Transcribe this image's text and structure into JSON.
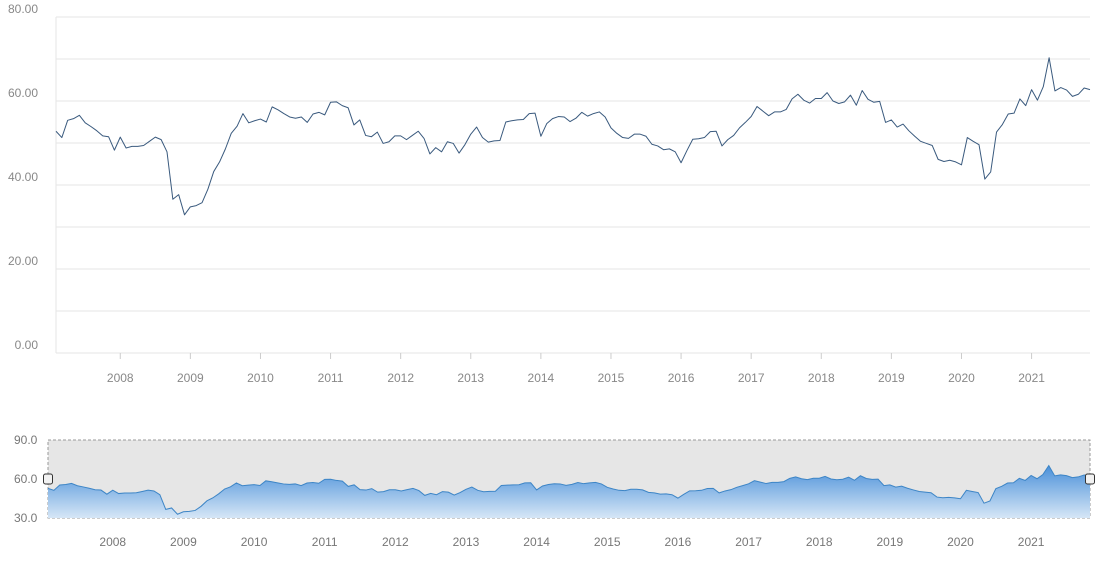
{
  "colors": {
    "line": "#3a5a7e",
    "grid": "#e6e6e6",
    "axis_text": "#888888",
    "navigator_mask": "#e6e6e6",
    "navigator_fill_top": "#4a90d9",
    "navigator_fill_bottom": "#d6e6f6",
    "navigator_line": "#3d85c6"
  },
  "icons": {
    "navigator_left_handle": "range-handle-left-icon",
    "navigator_right_handle": "range-handle-right-icon"
  },
  "chart_data": [
    {
      "type": "line",
      "role": "main",
      "title": "",
      "xlabel": "",
      "ylabel": "",
      "grid": true,
      "legend": "none",
      "xlim": [
        "2007-02",
        "2021-11"
      ],
      "ylim": [
        0,
        80
      ],
      "y_ticks": [
        "0.00",
        "20.00",
        "40.00",
        "60.00",
        "80.00"
      ],
      "x_ticks": [
        "2008",
        "2009",
        "2010",
        "2011",
        "2012",
        "2013",
        "2014",
        "2015",
        "2016",
        "2017",
        "2018",
        "2019",
        "2020",
        "2021"
      ],
      "series": [
        {
          "x": [
            "2007-02",
            "2007-03",
            "2007-04",
            "2007-05",
            "2007-06",
            "2007-07",
            "2007-08",
            "2007-09",
            "2007-10",
            "2007-11",
            "2007-12",
            "2008-01",
            "2008-02",
            "2008-03",
            "2008-04",
            "2008-05",
            "2008-06",
            "2008-07",
            "2008-08",
            "2008-09",
            "2008-10",
            "2008-11",
            "2008-12",
            "2009-01",
            "2009-02",
            "2009-03",
            "2009-04",
            "2009-05",
            "2009-06",
            "2009-07",
            "2009-08",
            "2009-09",
            "2009-10",
            "2009-11",
            "2009-12",
            "2010-01",
            "2010-02",
            "2010-03",
            "2010-04",
            "2010-05",
            "2010-06",
            "2010-07",
            "2010-08",
            "2010-09",
            "2010-10",
            "2010-11",
            "2010-12",
            "2011-01",
            "2011-02",
            "2011-03",
            "2011-04",
            "2011-05",
            "2011-06",
            "2011-07",
            "2011-08",
            "2011-09",
            "2011-10",
            "2011-11",
            "2011-12",
            "2012-01",
            "2012-02",
            "2012-03",
            "2012-04",
            "2012-05",
            "2012-06",
            "2012-07",
            "2012-08",
            "2012-09",
            "2012-10",
            "2012-11",
            "2012-12",
            "2013-01",
            "2013-02",
            "2013-03",
            "2013-04",
            "2013-05",
            "2013-06",
            "2013-07",
            "2013-08",
            "2013-09",
            "2013-10",
            "2013-11",
            "2013-12",
            "2014-01",
            "2014-02",
            "2014-03",
            "2014-04",
            "2014-05",
            "2014-06",
            "2014-07",
            "2014-08",
            "2014-09",
            "2014-10",
            "2014-11",
            "2014-12",
            "2015-01",
            "2015-02",
            "2015-03",
            "2015-04",
            "2015-05",
            "2015-06",
            "2015-07",
            "2015-08",
            "2015-09",
            "2015-10",
            "2015-11",
            "2015-12",
            "2016-01",
            "2016-02",
            "2016-03",
            "2016-04",
            "2016-05",
            "2016-06",
            "2016-07",
            "2016-08",
            "2016-09",
            "2016-10",
            "2016-11",
            "2016-12",
            "2017-01",
            "2017-02",
            "2017-03",
            "2017-04",
            "2017-05",
            "2017-06",
            "2017-07",
            "2017-08",
            "2017-09",
            "2017-10",
            "2017-11",
            "2017-12",
            "2018-01",
            "2018-02",
            "2018-03",
            "2018-04",
            "2018-05",
            "2018-06",
            "2018-07",
            "2018-08",
            "2018-09",
            "2018-10",
            "2018-11",
            "2018-12",
            "2019-01",
            "2019-02",
            "2019-03",
            "2019-04",
            "2019-05",
            "2019-06",
            "2019-07",
            "2019-08",
            "2019-09",
            "2019-10",
            "2019-11",
            "2019-12",
            "2020-01",
            "2020-02",
            "2020-03",
            "2020-04",
            "2020-05",
            "2020-06",
            "2020-07",
            "2020-08",
            "2020-09",
            "2020-10",
            "2020-11",
            "2020-12",
            "2021-01",
            "2021-02",
            "2021-03",
            "2021-04",
            "2021-05",
            "2021-06",
            "2021-07",
            "2021-08",
            "2021-09",
            "2021-10",
            "2021-11"
          ],
          "values": [
            52.8,
            51.3,
            55.4,
            55.8,
            56.6,
            54.8,
            53.9,
            52.9,
            51.7,
            51.5,
            48.3,
            51.4,
            48.8,
            49.2,
            49.2,
            49.4,
            50.4,
            51.4,
            50.8,
            47.9,
            36.6,
            37.7,
            32.9,
            34.8,
            35.1,
            35.8,
            39.0,
            43.2,
            45.5,
            48.6,
            52.3,
            54.0,
            57.0,
            54.8,
            55.3,
            55.7,
            55.0,
            58.6,
            57.9,
            57.0,
            56.2,
            55.9,
            56.2,
            54.9,
            56.9,
            57.3,
            56.7,
            59.7,
            59.8,
            58.9,
            58.4,
            54.3,
            55.5,
            51.8,
            51.5,
            52.6,
            49.9,
            50.3,
            51.7,
            51.7,
            50.8,
            51.8,
            52.8,
            51.1,
            47.4,
            48.9,
            47.9,
            50.3,
            49.9,
            47.6,
            49.6,
            52.1,
            53.8,
            51.3,
            50.2,
            50.5,
            50.6,
            55.0,
            55.3,
            55.5,
            55.6,
            57.0,
            57.1,
            51.6,
            54.6,
            55.8,
            56.3,
            56.2,
            55.1,
            55.9,
            57.3,
            56.4,
            57.0,
            57.4,
            56.2,
            53.6,
            52.3,
            51.3,
            51.1,
            52.1,
            52.1,
            51.6,
            49.7,
            49.3,
            48.4,
            48.6,
            47.9,
            45.3,
            48.2,
            50.9,
            51.0,
            51.3,
            52.7,
            52.8,
            49.3,
            50.8,
            51.8,
            53.6,
            54.9,
            56.3,
            58.7,
            57.6,
            56.5,
            57.4,
            57.4,
            58.0,
            60.5,
            61.6,
            60.2,
            59.5,
            60.6,
            60.6,
            62.0,
            60.0,
            59.4,
            59.8,
            61.4,
            59.0,
            62.5,
            60.4,
            59.7,
            59.9,
            54.9,
            55.5,
            53.8,
            54.5,
            52.9,
            51.6,
            50.4,
            49.9,
            49.4,
            46.1,
            45.6,
            45.9,
            45.5,
            44.8,
            51.3,
            50.4,
            49.6,
            41.4,
            43.1,
            52.6,
            54.4,
            56.9,
            57.1,
            60.5,
            58.9,
            62.7,
            60.2,
            63.4,
            70.3,
            62.4,
            63.2,
            62.6,
            61.1,
            61.6,
            63.1,
            62.7
          ]
        }
      ]
    },
    {
      "type": "area",
      "role": "navigator",
      "xlim": [
        "2007-02",
        "2021-11"
      ],
      "ylim": [
        30,
        90
      ],
      "y_ticks": [
        "30.0",
        "60.0",
        "90.0"
      ],
      "x_ticks": [
        "2008",
        "2009",
        "2010",
        "2011",
        "2012",
        "2013",
        "2014",
        "2015",
        "2016",
        "2017",
        "2018",
        "2019",
        "2020",
        "2021"
      ],
      "series_ref": "same as main series"
    }
  ]
}
